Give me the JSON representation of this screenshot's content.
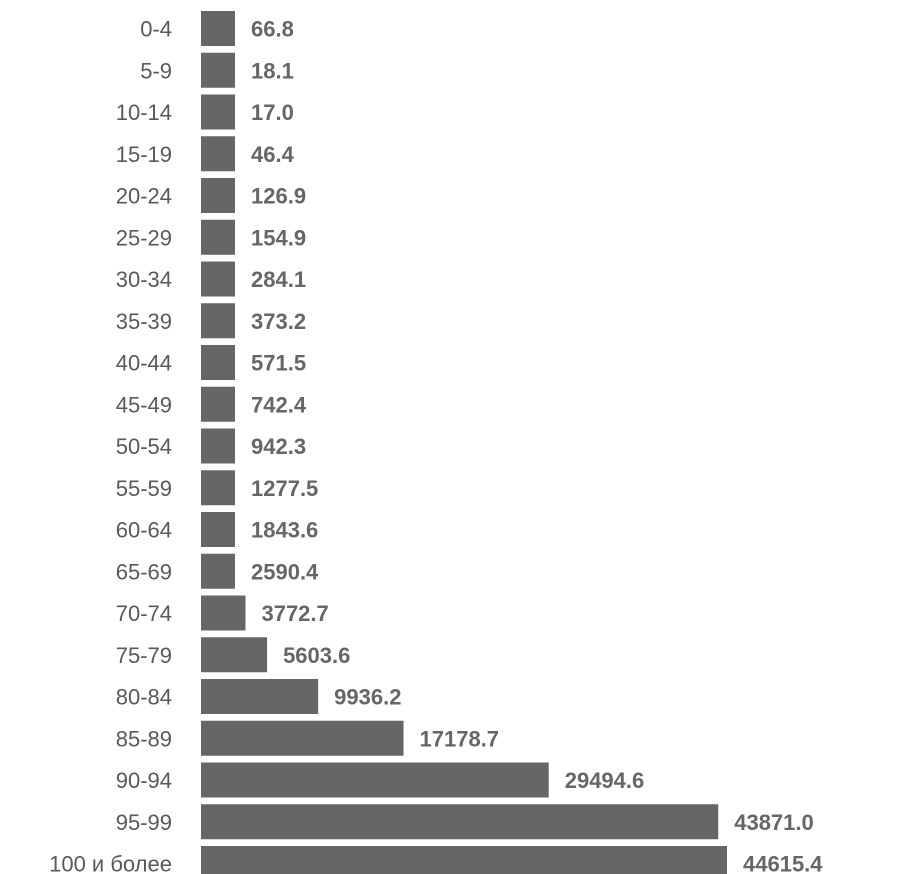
{
  "chart_data": {
    "type": "bar",
    "orientation": "horizontal",
    "title": "",
    "xlabel": "",
    "ylabel": "",
    "categories": [
      "0-4",
      "5-9",
      "10-14",
      "15-19",
      "20-24",
      "25-29",
      "30-34",
      "35-39",
      "40-44",
      "45-49",
      "50-54",
      "55-59",
      "60-64",
      "65-69",
      "70-74",
      "75-79",
      "80-84",
      "85-89",
      "90-94",
      "95-99",
      "100 и более"
    ],
    "values": [
      66.8,
      18.1,
      17.0,
      46.4,
      126.9,
      154.9,
      284.1,
      373.2,
      571.5,
      742.4,
      942.3,
      1277.5,
      1843.6,
      2590.4,
      3772.7,
      5603.6,
      9936.2,
      17178.7,
      29494.6,
      43871.0,
      44615.4
    ],
    "value_labels": [
      "66.8",
      "18.1",
      "17.0",
      "46.4",
      "126.9",
      "154.9",
      "284.1",
      "373.2",
      "571.5",
      "742.4",
      "942.3",
      "1277.5",
      "1843.6",
      "2590.4",
      "3772.7",
      "5603.6",
      "9936.2",
      "17178.7",
      "29494.6",
      "43871.0",
      "44615.4"
    ],
    "bar_color": "#666666",
    "grid": false,
    "legend": "none"
  }
}
